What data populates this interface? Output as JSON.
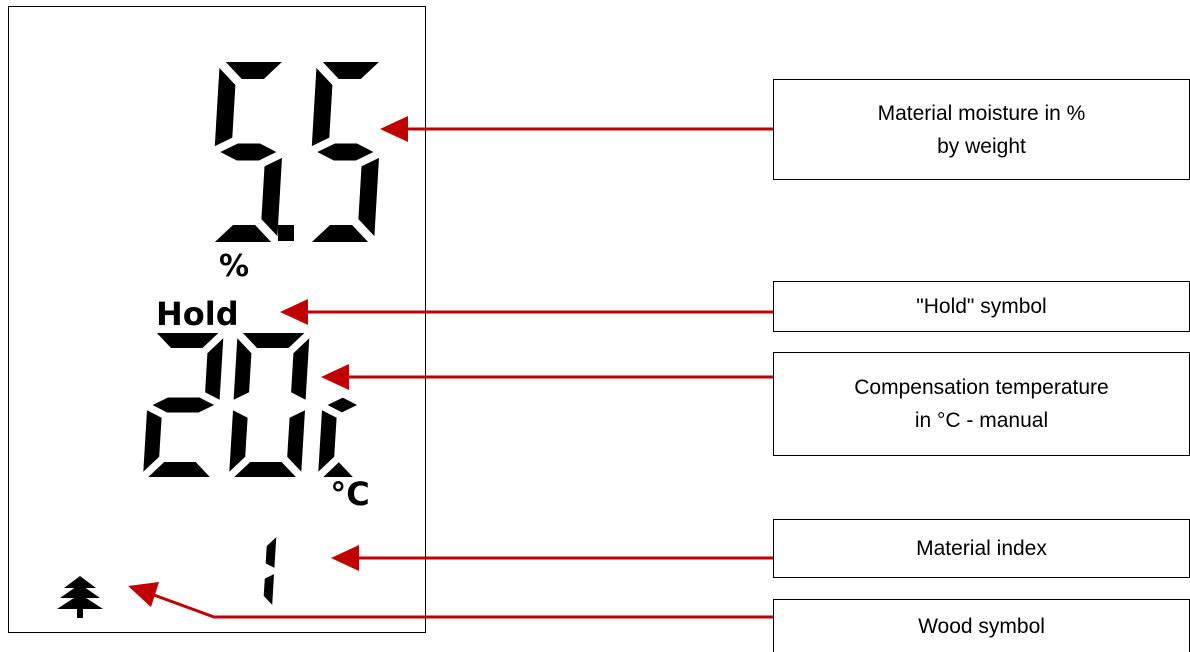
{
  "display": {
    "moisture_reading": "5.5",
    "moisture_unit": "%",
    "hold_symbol": "Hold",
    "temperature_reading": "20C",
    "temperature_unit": "°C",
    "material_index": "1"
  },
  "callouts": {
    "moisture": "Material moisture in %\nby weight",
    "hold": "\"Hold\" symbol",
    "temperature": "Compensation temperature\nin °C - manual",
    "material_index": "Material index",
    "wood": "Wood symbol"
  },
  "colors": {
    "arrow": "#c00000",
    "segment": "#000000",
    "frame": "#000000"
  },
  "icons": {
    "wood": "tree-icon"
  }
}
